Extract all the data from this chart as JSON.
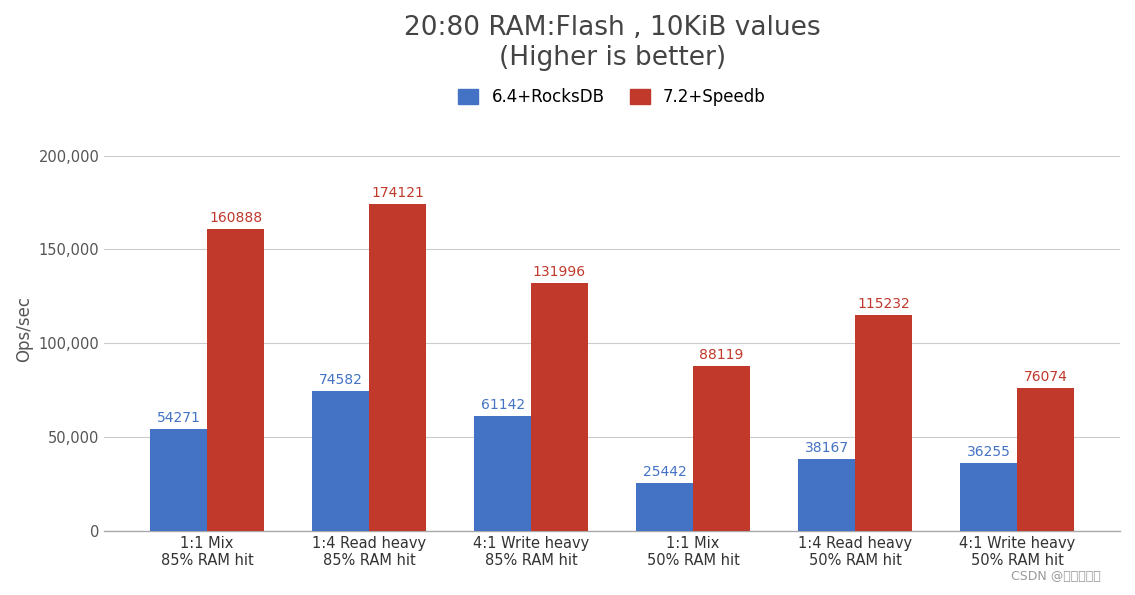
{
  "title_line1": "20:80 RAM:Flash , 10KiB values",
  "title_line2": "(Higher is better)",
  "ylabel": "Ops/sec",
  "watermark": "CSDN @虹科云科技",
  "categories": [
    "1:1 Mix\n85% RAM hit",
    "1:4 Read heavy\n85% RAM hit",
    "4:1 Write heavy\n85% RAM hit",
    "1:1 Mix\n50% RAM hit",
    "1:4 Read heavy\n50% RAM hit",
    "4:1 Write heavy\n50% RAM hit"
  ],
  "series": [
    {
      "label": "6.4+RocksDB",
      "color": "#4472C4",
      "values": [
        54271,
        74582,
        61142,
        25442,
        38167,
        36255
      ]
    },
    {
      "label": "7.2+Speedb",
      "color": "#C0392B",
      "values": [
        160888,
        174121,
        131996,
        88119,
        115232,
        76074
      ]
    }
  ],
  "ylim": [
    0,
    215000
  ],
  "yticks": [
    0,
    50000,
    100000,
    150000,
    200000
  ],
  "ytick_labels": [
    "0",
    "50,000",
    "100,000",
    "150,000",
    "200,000"
  ],
  "background_color": "#FFFFFF",
  "grid_color": "#CCCCCC",
  "bar_width": 0.35,
  "title_fontsize": 19,
  "axis_label_fontsize": 12,
  "tick_fontsize": 10.5,
  "legend_fontsize": 12,
  "annotation_fontsize": 10
}
